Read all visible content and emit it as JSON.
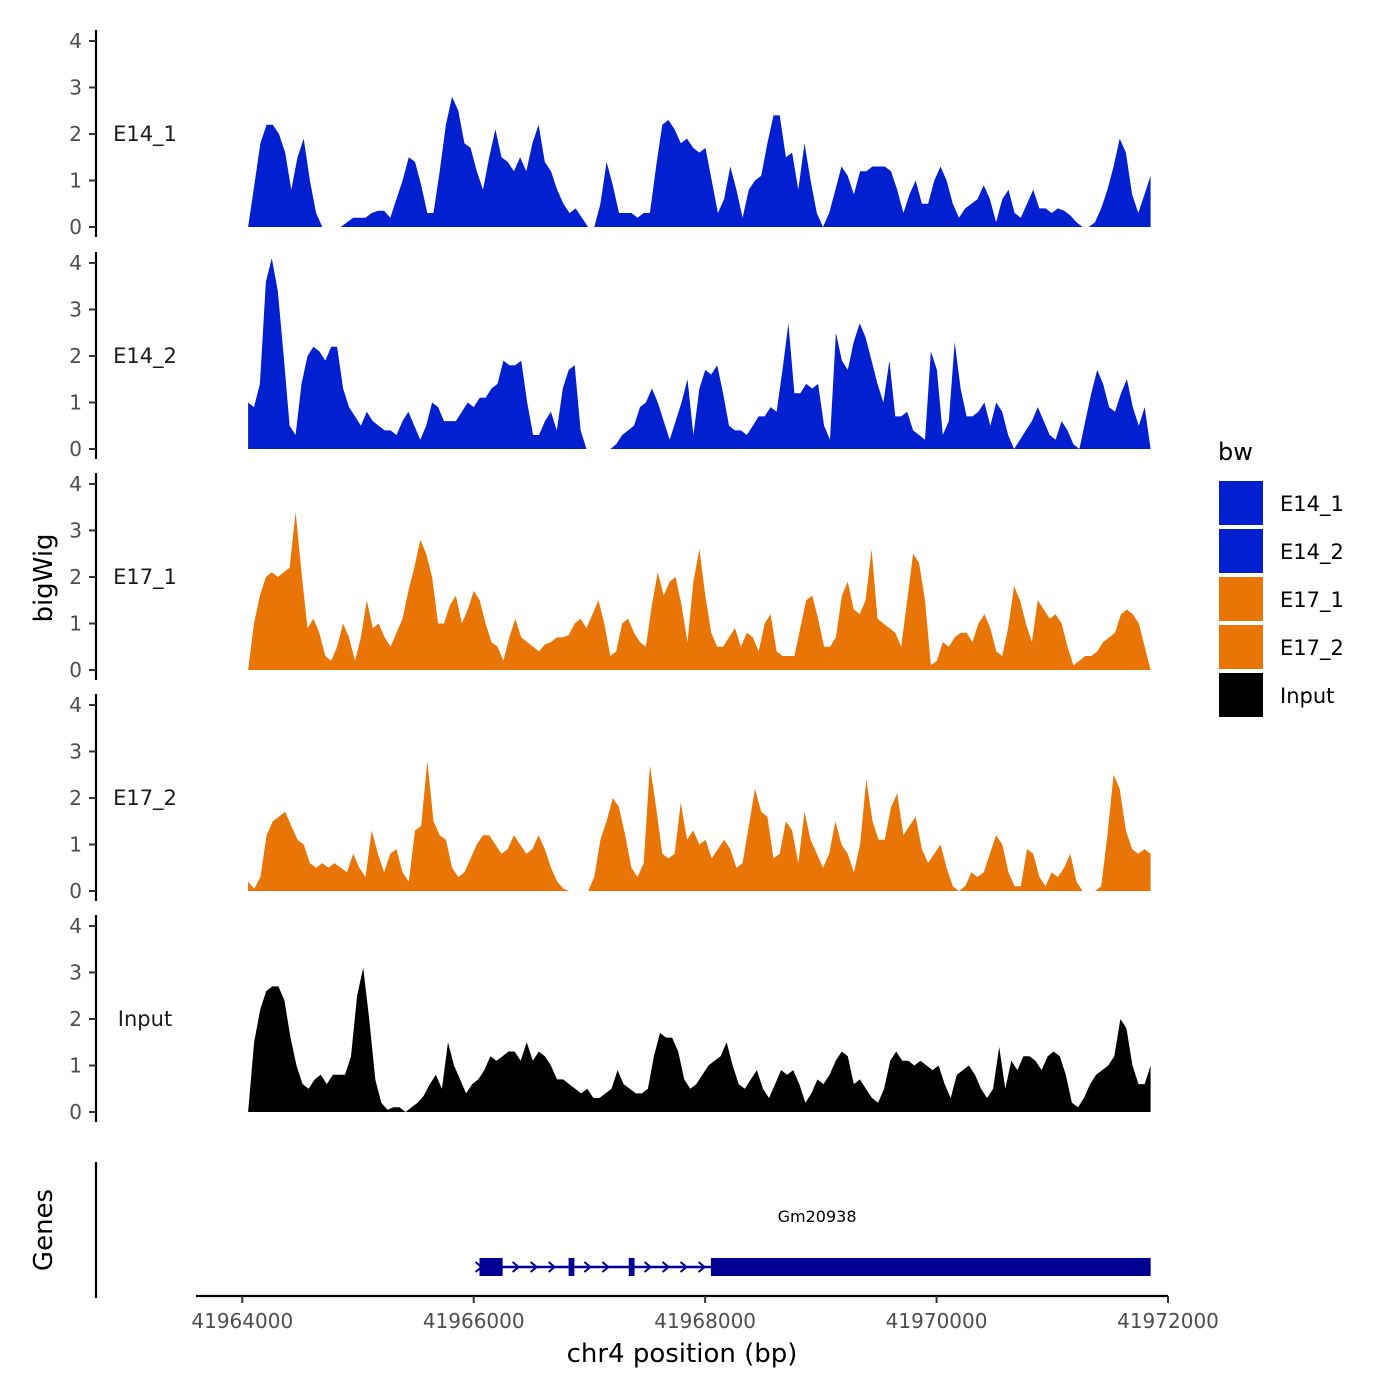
{
  "chart_data": {
    "type": "area",
    "xlabel": "chr4 position (bp)",
    "ylabel": "bigWig",
    "genes_label": "Genes",
    "xlim": [
      41963600,
      41972000
    ],
    "data_xrange": [
      41964050,
      41971850
    ],
    "ylim": [
      0,
      4.3
    ],
    "y_ticks": [
      "0",
      "1",
      "2",
      "3",
      "4"
    ],
    "x_ticks": [
      {
        "value": 41964000,
        "label": "41964000"
      },
      {
        "value": 41966000,
        "label": "41966000"
      },
      {
        "value": 41968000,
        "label": "41968000"
      },
      {
        "value": 41970000,
        "label": "41970000"
      },
      {
        "value": 41972000,
        "label": "41972000"
      }
    ],
    "legend": {
      "title": "bw",
      "items": [
        {
          "label": "E14_1",
          "color": "#0220D0"
        },
        {
          "label": "E14_2",
          "color": "#0220D0"
        },
        {
          "label": "E17_1",
          "color": "#E87506"
        },
        {
          "label": "E17_2",
          "color": "#E87506"
        },
        {
          "label": "Input",
          "color": "#000000"
        }
      ]
    },
    "series": [
      {
        "name": "E14_1",
        "label": "E14_1",
        "color": "#0220D0",
        "values": [
          0,
          0.9,
          1.8,
          2.2,
          2.2,
          2.0,
          1.6,
          0.8,
          1.5,
          1.9,
          1.0,
          0.3,
          0,
          0,
          0,
          0,
          0.1,
          0.2,
          0.2,
          0.2,
          0.3,
          0.35,
          0.35,
          0.2,
          0.6,
          1.0,
          1.5,
          1.4,
          0.9,
          0.3,
          0.3,
          1.2,
          2.2,
          2.8,
          2.5,
          1.8,
          1.7,
          1.2,
          0.8,
          1.5,
          2.1,
          1.5,
          1.4,
          1.2,
          1.5,
          1.2,
          1.8,
          2.2,
          1.4,
          1.2,
          0.8,
          0.5,
          0.3,
          0.4,
          0.2,
          0,
          0,
          0.5,
          1.4,
          0.9,
          0.3,
          0.3,
          0.3,
          0.2,
          0.3,
          0.3,
          1.3,
          2.2,
          2.3,
          2.1,
          1.8,
          1.9,
          1.7,
          1.6,
          1.7,
          1.0,
          0.3,
          0.6,
          1.3,
          0.8,
          0.2,
          0.8,
          1.0,
          1.1,
          1.8,
          2.4,
          2.4,
          1.5,
          1.6,
          0.8,
          1.8,
          1.0,
          0.3,
          0,
          0.3,
          0.8,
          1.3,
          1.1,
          0.7,
          1.2,
          1.2,
          1.3,
          1.3,
          1.3,
          1.2,
          0.8,
          0.3,
          0.7,
          1.0,
          0.5,
          0.5,
          1.0,
          1.3,
          1.0,
          0.5,
          0.2,
          0.4,
          0.5,
          0.6,
          0.9,
          0.6,
          0.1,
          0.6,
          0.8,
          0.3,
          0.2,
          0.5,
          0.8,
          0.4,
          0.4,
          0.3,
          0.4,
          0.35,
          0.25,
          0.1,
          0,
          0,
          0.1,
          0.4,
          0.8,
          1.3,
          1.9,
          1.6,
          0.7,
          0.3,
          0.7,
          1.1
        ]
      },
      {
        "name": "E14_2",
        "label": "E14_2",
        "color": "#0220D0",
        "values": [
          1.0,
          0.9,
          1.4,
          3.6,
          4.1,
          3.4,
          2.0,
          0.5,
          0.3,
          1.4,
          2.0,
          2.2,
          2.1,
          1.9,
          2.2,
          2.2,
          1.3,
          0.9,
          0.7,
          0.5,
          0.8,
          0.6,
          0.5,
          0.4,
          0.4,
          0.3,
          0.6,
          0.8,
          0.5,
          0.2,
          0.5,
          1.0,
          0.9,
          0.6,
          0.6,
          0.6,
          0.8,
          1.0,
          0.9,
          1.1,
          1.1,
          1.3,
          1.4,
          1.9,
          1.8,
          1.8,
          1.9,
          1.0,
          0.3,
          0.3,
          0.6,
          0.8,
          0.4,
          1.3,
          1.7,
          1.8,
          0.4,
          0,
          0,
          0,
          0,
          0,
          0.1,
          0.3,
          0.4,
          0.5,
          0.9,
          1.0,
          1.3,
          1.0,
          0.6,
          0.2,
          0.6,
          1.0,
          1.5,
          0.3,
          1.3,
          1.7,
          1.6,
          1.8,
          1.2,
          0.5,
          0.4,
          0.4,
          0.3,
          0.5,
          0.7,
          0.7,
          0.9,
          0.8,
          1.7,
          2.7,
          1.2,
          1.2,
          1.4,
          1.3,
          1.4,
          0.5,
          0.2,
          2.5,
          1.9,
          1.7,
          2.3,
          2.7,
          2.4,
          1.9,
          1.4,
          1.0,
          1.9,
          0.7,
          0.7,
          0.8,
          0.4,
          0.3,
          0.2,
          2.1,
          1.7,
          0.3,
          0.6,
          2.3,
          1.3,
          0.7,
          0.7,
          0.8,
          1.0,
          0.5,
          1.0,
          0.8,
          0.3,
          0,
          0.2,
          0.4,
          0.6,
          0.9,
          0.6,
          0.3,
          0.2,
          0.6,
          0.4,
          0.1,
          0,
          0.6,
          1.2,
          1.7,
          1.4,
          0.9,
          0.8,
          1.2,
          1.5,
          0.9,
          0.5,
          0.9,
          0
        ]
      },
      {
        "name": "E17_1",
        "label": "E17_1",
        "color": "#E87506",
        "values": [
          0,
          1.0,
          1.6,
          2.0,
          2.1,
          2.0,
          2.1,
          2.2,
          3.4,
          2.1,
          0.9,
          1.1,
          0.8,
          0.3,
          0.2,
          0.5,
          1.0,
          0.7,
          0.2,
          0.7,
          1.5,
          0.9,
          1.0,
          0.7,
          0.5,
          0.8,
          1.1,
          1.7,
          2.2,
          2.8,
          2.5,
          2.0,
          1.0,
          1.0,
          1.4,
          1.6,
          1.0,
          1.3,
          1.7,
          1.5,
          1.0,
          0.6,
          0.5,
          0.2,
          0.7,
          1.1,
          0.7,
          0.6,
          0.5,
          0.4,
          0.55,
          0.6,
          0.7,
          0.7,
          0.75,
          1.0,
          1.1,
          0.9,
          1.2,
          1.5,
          1.0,
          0.3,
          0.4,
          1.0,
          1.1,
          0.8,
          0.6,
          0.5,
          1.4,
          2.1,
          1.6,
          1.9,
          2.0,
          1.4,
          0.6,
          1.9,
          2.6,
          1.6,
          0.8,
          0.5,
          0.5,
          0.7,
          0.9,
          0.5,
          0.8,
          0.7,
          0.4,
          1.0,
          1.2,
          0.4,
          0.3,
          0.3,
          0.3,
          0.9,
          1.5,
          1.6,
          1.1,
          0.5,
          0.5,
          0.7,
          1.6,
          1.9,
          1.3,
          1.2,
          1.5,
          2.6,
          1.1,
          1.0,
          0.9,
          0.8,
          0.5,
          1.5,
          2.5,
          2.3,
          1.5,
          0.1,
          0.2,
          0.6,
          0.5,
          0.7,
          0.8,
          0.8,
          0.6,
          1.0,
          1.2,
          0.9,
          0.4,
          0.3,
          0.9,
          1.8,
          1.5,
          1.0,
          0.6,
          1.5,
          1.3,
          1.1,
          1.2,
          1.0,
          0.5,
          0.1,
          0.2,
          0.3,
          0.3,
          0.4,
          0.6,
          0.7,
          0.8,
          1.2,
          1.3,
          1.2,
          1.0,
          0.5,
          0
        ]
      },
      {
        "name": "E17_2",
        "label": "E17_2",
        "color": "#E87506",
        "values": [
          0.2,
          0.05,
          0.3,
          1.2,
          1.5,
          1.6,
          1.7,
          1.4,
          1.1,
          1.0,
          0.6,
          0.5,
          0.6,
          0.5,
          0.6,
          0.5,
          0.4,
          0.8,
          0.5,
          0.3,
          1.3,
          0.8,
          0.4,
          0.8,
          0.9,
          0.4,
          0.2,
          1.3,
          1.4,
          2.8,
          1.5,
          1.2,
          1.1,
          0.5,
          0.3,
          0.4,
          0.7,
          1.0,
          1.2,
          1.2,
          1.0,
          0.8,
          0.9,
          1.2,
          1.0,
          0.8,
          0.9,
          1.2,
          0.9,
          0.5,
          0.2,
          0.05,
          0,
          0,
          0,
          0,
          0.3,
          1.1,
          1.5,
          2.0,
          1.8,
          1.2,
          0.5,
          0.3,
          0.6,
          2.7,
          1.8,
          0.8,
          0.7,
          0.8,
          1.9,
          1.1,
          1.3,
          1.0,
          1.1,
          0.7,
          0.9,
          1.1,
          0.9,
          0.5,
          0.6,
          1.4,
          2.2,
          1.7,
          1.6,
          0.7,
          0.8,
          1.5,
          1.3,
          0.6,
          1.7,
          1.1,
          0.8,
          0.5,
          0.8,
          1.5,
          1.0,
          0.8,
          0.4,
          1.0,
          2.4,
          1.5,
          1.1,
          1.1,
          1.8,
          2.1,
          1.2,
          1.4,
          1.6,
          0.9,
          0.6,
          0.8,
          1.0,
          0.5,
          0.1,
          0,
          0.1,
          0.4,
          0.3,
          0.4,
          0.8,
          1.2,
          1.0,
          0.4,
          0.1,
          0.1,
          0.9,
          0.8,
          0.3,
          0.1,
          0.4,
          0.3,
          0.5,
          0.8,
          0.2,
          0,
          0,
          0,
          0.1,
          1.2,
          2.5,
          2.2,
          1.3,
          0.9,
          0.8,
          0.9,
          0.8
        ]
      },
      {
        "name": "Input",
        "label": "Input",
        "color": "#000000",
        "values": [
          0,
          1.5,
          2.2,
          2.6,
          2.7,
          2.7,
          2.4,
          1.6,
          1.0,
          0.6,
          0.5,
          0.7,
          0.8,
          0.6,
          0.8,
          0.8,
          0.8,
          1.2,
          2.5,
          3.1,
          2.0,
          0.7,
          0.2,
          0.05,
          0.1,
          0.1,
          0,
          0.1,
          0.2,
          0.35,
          0.6,
          0.8,
          0.5,
          1.5,
          1.0,
          0.7,
          0.4,
          0.6,
          0.7,
          0.9,
          1.2,
          1.1,
          1.2,
          1.3,
          1.3,
          1.1,
          1.5,
          1.1,
          1.3,
          1.2,
          1.0,
          0.7,
          0.7,
          0.6,
          0.5,
          0.4,
          0.5,
          0.3,
          0.3,
          0.4,
          0.5,
          0.9,
          0.6,
          0.5,
          0.4,
          0.4,
          0.5,
          1.2,
          1.7,
          1.6,
          1.6,
          1.3,
          0.7,
          0.5,
          0.6,
          0.8,
          1.0,
          1.1,
          1.2,
          1.5,
          1.0,
          0.6,
          0.5,
          0.7,
          0.9,
          0.5,
          0.3,
          0.6,
          0.9,
          0.8,
          0.9,
          0.6,
          0.2,
          0.4,
          0.7,
          0.6,
          0.8,
          1.1,
          1.3,
          1.2,
          0.6,
          0.7,
          0.5,
          0.3,
          0.2,
          0.5,
          1.1,
          1.3,
          1.1,
          1.1,
          1.0,
          1.1,
          1.0,
          0.9,
          1.0,
          0.6,
          0.3,
          0.8,
          0.9,
          1.0,
          0.8,
          0.5,
          0.3,
          0.5,
          1.4,
          0.5,
          1.1,
          0.9,
          1.2,
          1.2,
          1.1,
          0.9,
          1.2,
          1.3,
          1.2,
          0.8,
          0.2,
          0.1,
          0.3,
          0.6,
          0.8,
          0.9,
          1.0,
          1.2,
          2.0,
          1.8,
          1.0,
          0.6,
          0.6,
          1.0
        ]
      }
    ],
    "gene": {
      "name": "Gm20938",
      "color": "#000092",
      "start": 41966050,
      "end": 41971850,
      "exons": [
        {
          "start": 41966050,
          "end": 41966250
        },
        {
          "start": 41966820,
          "end": 41966870
        },
        {
          "start": 41967340,
          "end": 41967390
        },
        {
          "start": 41968050,
          "end": 41971850
        }
      ]
    }
  }
}
